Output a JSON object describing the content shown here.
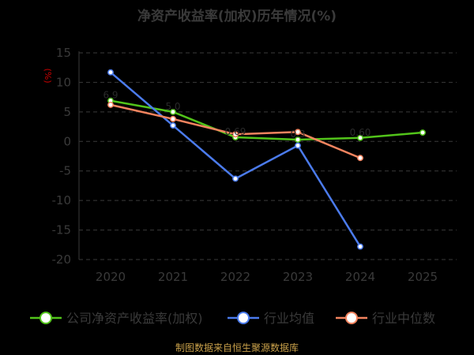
{
  "page": {
    "title": "净资产收益率(加权)历年情况(%)",
    "source": "制图数据来自恒生聚源数据库"
  },
  "chart_data": {
    "type": "line",
    "title": "净资产收益率(加权)历年情况(%)",
    "ylabel": "(%)",
    "xlabel": "",
    "categories": [
      "2020",
      "2021",
      "2022",
      "2023",
      "2024",
      "2025"
    ],
    "ylim": [
      -20,
      15
    ],
    "yticks": [
      15,
      10,
      5,
      0,
      -5,
      -10,
      -15,
      -20
    ],
    "grid": true,
    "legend_position": "bottom",
    "series": [
      {
        "name": "公司净资产收益率(加权)",
        "color": "#52c41a",
        "values": [
          6.9,
          5.0,
          0.7,
          0.3,
          0.6,
          1.5
        ]
      },
      {
        "name": "行业均值",
        "color": "#4b7bec",
        "values": [
          11.7,
          2.7,
          -6.3,
          -0.7,
          -17.8,
          null
        ]
      },
      {
        "name": "行业中位数",
        "color": "#f4845f",
        "values": [
          6.2,
          3.8,
          1.2,
          1.6,
          -2.8,
          null
        ]
      }
    ],
    "annotations": [
      "6.9",
      "5.0",
      "0.69",
      "0.3",
      "0.60"
    ]
  }
}
